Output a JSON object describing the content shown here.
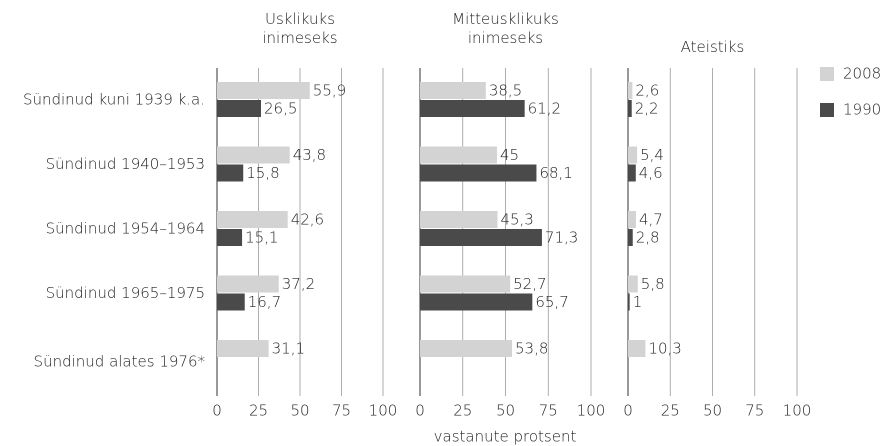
{
  "chart_data": {
    "type": "bar",
    "categories": [
      "Sündinud kuni 1939 k.a.",
      "Sündinud 1940–1953",
      "Sündinud 1954–1964",
      "Sündinud 1965–1975",
      "Sündinud alates 1976*"
    ],
    "xlabel": "vastanute protsent",
    "xlim": [
      0,
      100
    ],
    "xticks": [
      0,
      25,
      50,
      75,
      100
    ],
    "grid": true,
    "legend": "right",
    "series": [
      {
        "name": "2008",
        "color": "#d3d3d3"
      },
      {
        "name": "1990",
        "color": "#4a4a4a"
      }
    ],
    "panels": [
      {
        "title": "Usklikuks inimeseks",
        "values": [
          [
            55.9,
            43.8,
            42.6,
            37.2,
            31.1
          ],
          [
            26.5,
            15.8,
            15.1,
            16.7,
            null
          ]
        ],
        "value_labels": [
          [
            "55,9",
            "43,8",
            "42,6",
            "37,2",
            "31,1"
          ],
          [
            "26,5",
            "15,8",
            "15,1",
            "16,7",
            null
          ]
        ]
      },
      {
        "title": "Mitteusklikuks inimeseks",
        "values": [
          [
            38.5,
            45,
            45.3,
            52.7,
            53.8
          ],
          [
            61.2,
            68.1,
            71.3,
            65.7,
            null
          ]
        ],
        "value_labels": [
          [
            "38,5",
            "45",
            "45,3",
            "52,7",
            "53,8"
          ],
          [
            "61,2",
            "68,1",
            "71,3",
            "65,7",
            null
          ]
        ]
      },
      {
        "title": "Ateistiks",
        "values": [
          [
            2.6,
            5.4,
            4.7,
            5.8,
            10.3
          ],
          [
            2.2,
            4.6,
            2.8,
            1,
            null
          ]
        ],
        "value_labels": [
          [
            "2,6",
            "5,4",
            "4,7",
            "5,8",
            "10,3"
          ],
          [
            "2,2",
            "4,6",
            "2,8",
            "1",
            null
          ]
        ]
      }
    ]
  }
}
